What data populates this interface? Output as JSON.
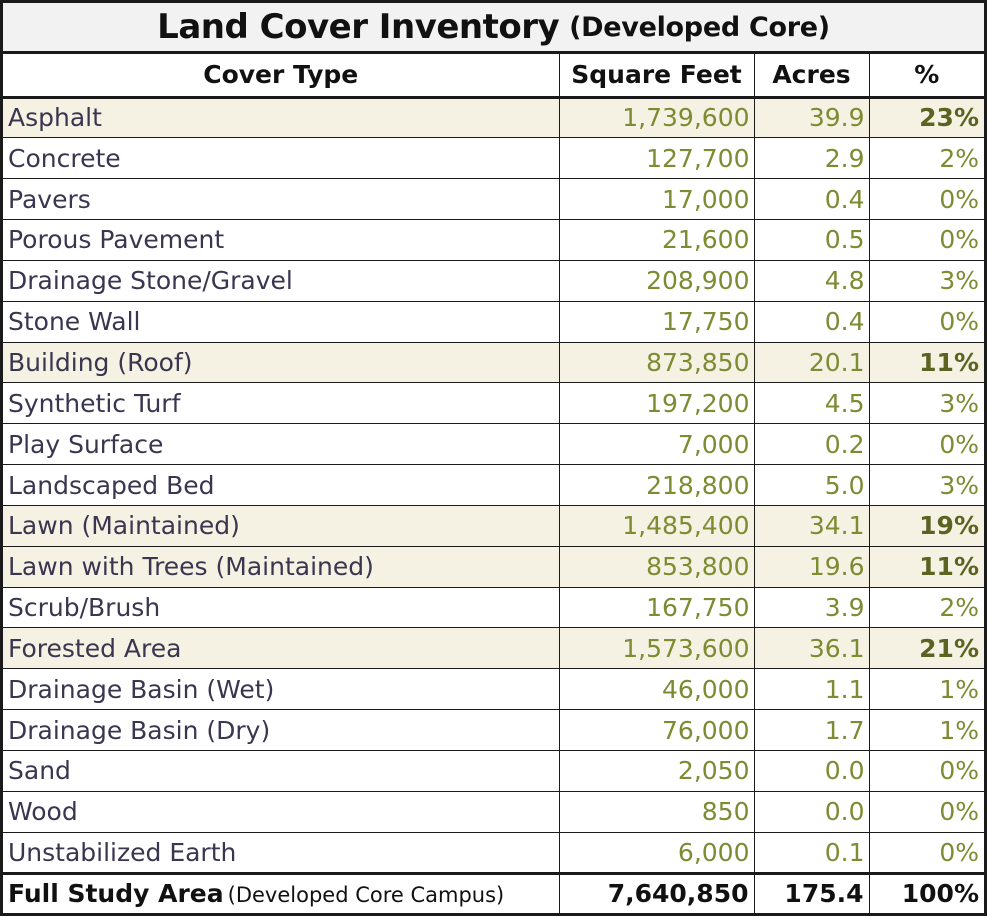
{
  "title": {
    "main": "Land Cover Inventory",
    "sub": "(Developed Core)"
  },
  "headers": [
    "Cover Type",
    "Square Feet",
    "Acres",
    "%"
  ],
  "rows": [
    {
      "type": "Asphalt",
      "sqft": "1,739,600",
      "acres": "39.9",
      "pct": "23%",
      "highlight": true
    },
    {
      "type": "Concrete",
      "sqft": "127,700",
      "acres": "2.9",
      "pct": "2%",
      "highlight": false
    },
    {
      "type": "Pavers",
      "sqft": "17,000",
      "acres": "0.4",
      "pct": "0%",
      "highlight": false
    },
    {
      "type": "Porous Pavement",
      "sqft": "21,600",
      "acres": "0.5",
      "pct": "0%",
      "highlight": false
    },
    {
      "type": "Drainage Stone/Gravel",
      "sqft": "208,900",
      "acres": "4.8",
      "pct": "3%",
      "highlight": false
    },
    {
      "type": "Stone Wall",
      "sqft": "17,750",
      "acres": "0.4",
      "pct": "0%",
      "highlight": false
    },
    {
      "type": "Building (Roof)",
      "sqft": "873,850",
      "acres": "20.1",
      "pct": "11%",
      "highlight": true
    },
    {
      "type": "Synthetic Turf",
      "sqft": "197,200",
      "acres": "4.5",
      "pct": "3%",
      "highlight": false
    },
    {
      "type": "Play Surface",
      "sqft": "7,000",
      "acres": "0.2",
      "pct": "0%",
      "highlight": false
    },
    {
      "type": "Landscaped Bed",
      "sqft": "218,800",
      "acres": "5.0",
      "pct": "3%",
      "highlight": false
    },
    {
      "type": "Lawn (Maintained)",
      "sqft": "1,485,400",
      "acres": "34.1",
      "pct": "19%",
      "highlight": true
    },
    {
      "type": "Lawn with Trees (Maintained)",
      "sqft": "853,800",
      "acres": "19.6",
      "pct": "11%",
      "highlight": true
    },
    {
      "type": "Scrub/Brush",
      "sqft": "167,750",
      "acres": "3.9",
      "pct": "2%",
      "highlight": false
    },
    {
      "type": "Forested Area",
      "sqft": "1,573,600",
      "acres": "36.1",
      "pct": "21%",
      "highlight": true
    },
    {
      "type": "Drainage Basin (Wet)",
      "sqft": "46,000",
      "acres": "1.1",
      "pct": "1%",
      "highlight": false
    },
    {
      "type": "Drainage Basin (Dry)",
      "sqft": "76,000",
      "acres": "1.7",
      "pct": "1%",
      "highlight": false
    },
    {
      "type": "Sand",
      "sqft": "2,050",
      "acres": "0.0",
      "pct": "0%",
      "highlight": false
    },
    {
      "type": "Wood",
      "sqft": "850",
      "acres": "0.0",
      "pct": "0%",
      "highlight": false
    },
    {
      "type": "Unstabilized Earth",
      "sqft": "6,000",
      "acres": "0.1",
      "pct": "0%",
      "highlight": false
    }
  ],
  "total": {
    "label": "Full Study Area",
    "sublabel": "(Developed Core Campus)",
    "sqft": "7,640,850",
    "acres": "175.4",
    "pct": "100%"
  },
  "colors": {
    "border": "#1a1a1a",
    "title_bg": "#f2f2f2",
    "highlight_row_bg": "#f5f2e3",
    "cover_type_text": "#3b3550",
    "value_text": "#7d8b32",
    "highlight_pct_text": "#5c6322"
  }
}
